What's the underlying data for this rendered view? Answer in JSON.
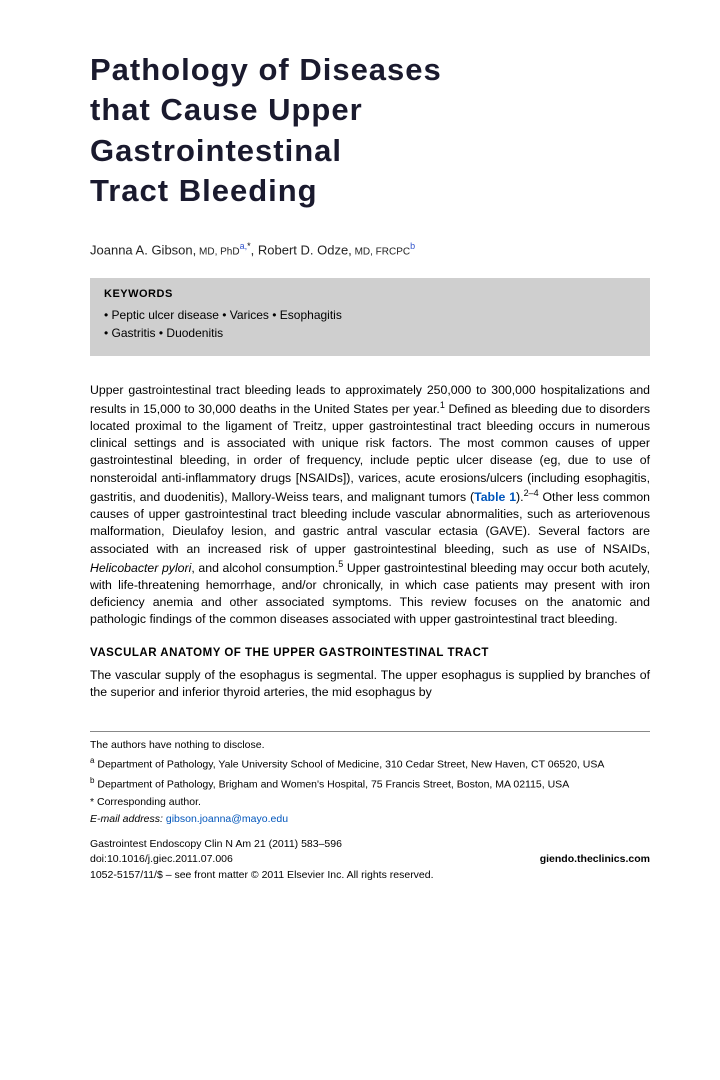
{
  "title_l1": "Pathology of Diseases",
  "title_l2": "that Cause Upper",
  "title_l3": "Gastrointestinal",
  "title_l4": "Tract Bleeding",
  "authors": {
    "a1_name": "Joanna A. Gibson,",
    "a1_cred": " MD, PhD",
    "a1_sup": "a,",
    "a1_star": "*",
    "sep": ", ",
    "a2_name": "Robert D. Odze,",
    "a2_cred": " MD, FRCPC",
    "a2_sup": "b"
  },
  "keywords": {
    "head": "KEYWORDS",
    "line1": "• Peptic ulcer disease • Varices • Esophagitis",
    "line2": "• Gastritis • Duodenitis"
  },
  "para1": {
    "t1": "Upper gastrointestinal tract bleeding leads to approximately 250,000 to 300,000 hospitalizations and results in 15,000 to 30,000 deaths in the United States per year.",
    "s1": "1",
    "t2": " Defined as bleeding due to disorders located proximal to the ligament of Treitz, upper gastrointestinal tract bleeding occurs in numerous clinical settings and is associated with unique risk factors. The most common causes of upper gastrointestinal bleeding, in order of frequency, include peptic ulcer disease (eg, due to use of nonsteroidal anti-inflammatory drugs [NSAIDs]), varices, acute erosions/ulcers (including esophagitis, gastritis, and duodenitis), Mallory-Weiss tears, and malignant tumors (",
    "tablelink": "Table 1",
    "t3": ").",
    "s2": "2–4",
    "t4": " Other less common causes of upper gastrointestinal tract bleeding include vascular abnormalities, such as arteriovenous malformation, Dieulafoy lesion, and gastric antral vascular ectasia (GAVE). Several factors are associated with an increased risk of upper gastrointestinal bleeding, such as use of NSAIDs, ",
    "hp": "Helicobacter pylori",
    "t5": ", and alcohol consumption.",
    "s3": "5",
    "t6": " Upper gastrointestinal bleeding may occur both acutely, with life-threatening hemorrhage, and/or chronically, in which case patients may present with iron deficiency anemia and other associated symptoms. This review focuses on the anatomic and pathologic findings of the common diseases associated with upper gastrointestinal tract bleeding."
  },
  "section_head": "VASCULAR ANATOMY OF THE UPPER GASTROINTESTINAL TRACT",
  "para2": "The vascular supply of the esophagus is segmental. The upper esophagus is supplied by branches of the superior and inferior thyroid arteries, the mid esophagus by",
  "footnotes": {
    "disclose": "The authors have nothing to disclose.",
    "a_sup": "a",
    "a_text": " Department of Pathology, Yale University School of Medicine, 310 Cedar Street, New Haven, CT 06520, USA",
    "b_sup": "b",
    "b_text": " Department of Pathology, Brigham and Women's Hospital, 75 Francis Street, Boston, MA 02115, USA",
    "star": "* Corresponding author.",
    "email_lbl": "E-mail address:",
    "email": " gibson.joanna@mayo.edu"
  },
  "pubinfo": {
    "journal": "Gastrointest Endoscopy Clin N Am 21 (2011) 583–596",
    "doi_lbl": "doi:",
    "doi": "10.1016/j.giec.2011.07.006",
    "site": "giendo.theclinics.com",
    "copyright": "1052-5157/11/$ – see front matter © 2011 Elsevier Inc. All rights reserved."
  }
}
